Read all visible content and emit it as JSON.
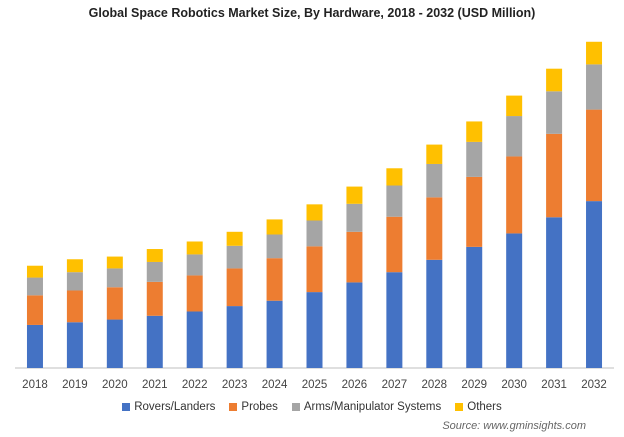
{
  "chart_data": {
    "type": "bar",
    "stacked": true,
    "title": "Global  Space Robotics  Market Size, By Hardware, 2018 - 2032 (USD Million)",
    "categories": [
      "2018",
      "2019",
      "2020",
      "2021",
      "2022",
      "2023",
      "2024",
      "2025",
      "2026",
      "2027",
      "2028",
      "2029",
      "2030",
      "2031",
      "2032"
    ],
    "series": [
      {
        "name": "Rovers/Landers",
        "color": "#4472C4",
        "values": [
          40,
          42.5,
          45,
          48.5,
          52.5,
          57.5,
          62.5,
          70.5,
          79.5,
          89,
          100.5,
          112.5,
          125,
          140,
          155
        ]
      },
      {
        "name": "Probes",
        "color": "#ED7D31",
        "values": [
          27.5,
          29.5,
          30,
          31.5,
          33.5,
          35,
          39.5,
          42.5,
          47,
          51.5,
          58,
          65,
          71.5,
          77.5,
          85
        ]
      },
      {
        "name": "Arms/Manipulator Systems",
        "color": "#A5A5A5",
        "values": [
          16.5,
          17,
          17.5,
          18.5,
          19.5,
          21,
          22,
          24,
          26,
          29,
          31,
          32.5,
          37.5,
          39.5,
          42
        ]
      },
      {
        "name": "Others",
        "color": "#FFC000",
        "values": [
          11,
          12,
          11,
          12,
          12,
          13,
          14,
          15,
          16,
          16,
          18,
          19,
          19,
          21,
          21
        ]
      }
    ],
    "ylim": [
      0,
      300
    ],
    "y_axis_visible": false,
    "grid": false,
    "legend_position": "bottom"
  },
  "source": "Source: www.gminsights.com"
}
